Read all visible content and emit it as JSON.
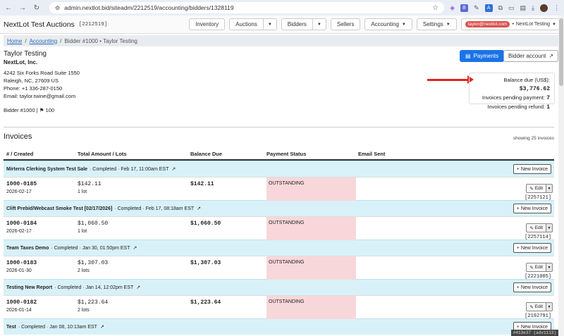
{
  "browser": {
    "url": "admin.nextlot.bid/siteadm/2212519/accounting/bidders/1328119"
  },
  "topnav": {
    "brand": "NextLot Test Auctions",
    "site_id": "[2212519]",
    "items": [
      "Inventory",
      "Auctions",
      "Bidders",
      "Sellers",
      "Accounting",
      "Settings"
    ],
    "user_email": "taylor@nextlot.com",
    "user_site": "NextLot Testing"
  },
  "breadcrumb": {
    "home": "Home",
    "accounting": "Accounting",
    "current": "Bidder #1000 • Taylor Testing"
  },
  "bidder": {
    "name": "Taylor Testing",
    "company": "NextLot, Inc.",
    "address1": "4242 Six Forks Road Suite 1550",
    "address2": "Raleigh, NC, 27609 US",
    "phone": "Phone: +1 336-287-0150",
    "email": "Email: taylor.twine@gmail.com",
    "bidder_no": "Bidder #1000",
    "paddle": "100"
  },
  "actions": {
    "payments": "Payments",
    "bidder_account": "Bidder account"
  },
  "balance": {
    "label": "Balance due (US$):",
    "value": "$3,776.62",
    "pending_payment_label": "Invoices pending payment:",
    "pending_payment": "7",
    "pending_refund_label": "Invoices pending refund:",
    "pending_refund": "1"
  },
  "invoices": {
    "title": "Invoices",
    "count": "showing 25 invoices",
    "columns": [
      "# / Created",
      "Total Amount / Lots",
      "Balance Due",
      "Payment Status",
      "Email Sent"
    ],
    "new_invoice_label": "New Invoice",
    "edit_label": "Edit",
    "groups": [
      {
        "name": "Mirterra Clerking System Test Sale",
        "meta": "· Completed · Feb 17, 11:00am EST",
        "invoice": {
          "number": "1000-0185",
          "date": "2026-02-17",
          "amount": "$142.11",
          "lots": "1 lot",
          "balance": "$142.11",
          "status": "OUTSTANDING",
          "id": "[2257121]"
        }
      },
      {
        "name": "Clift Prebid/Webcast Smoke Test [02/17/2026]",
        "meta": "· Completed · Feb 17, 08:18am EST",
        "invoice": {
          "number": "1000-0184",
          "date": "2026-02-17",
          "amount": "$1,060.50",
          "lots": "1 lot",
          "balance": "$1,060.50",
          "status": "OUTSTANDING",
          "id": "[2257114]"
        }
      },
      {
        "name": "Team Taxes Demo",
        "meta": "· Completed · Jan 30, 01:50pm EST",
        "invoice": {
          "number": "1000-0183",
          "date": "2026-01-30",
          "amount": "$1,307.03",
          "lots": "2 lots",
          "balance": "$1,307.03",
          "status": "OUTSTANDING",
          "id": "[2221085]"
        }
      },
      {
        "name": "Testing New Report",
        "meta": "· Completed · Jan 14, 12:02pm EST",
        "invoice": {
          "number": "1000-0182",
          "date": "2026-01-14",
          "amount": "$1,223.64",
          "lots": "2 lots",
          "balance": "$1,223.64",
          "status": "OUTSTANDING",
          "id": "[2192791]"
        }
      },
      {
        "name": "Test",
        "meta": "· Completed · Jan 08, 10:13am EST",
        "invoice": null
      }
    ]
  },
  "footer_tag": "#413e37 (adv1113)"
}
